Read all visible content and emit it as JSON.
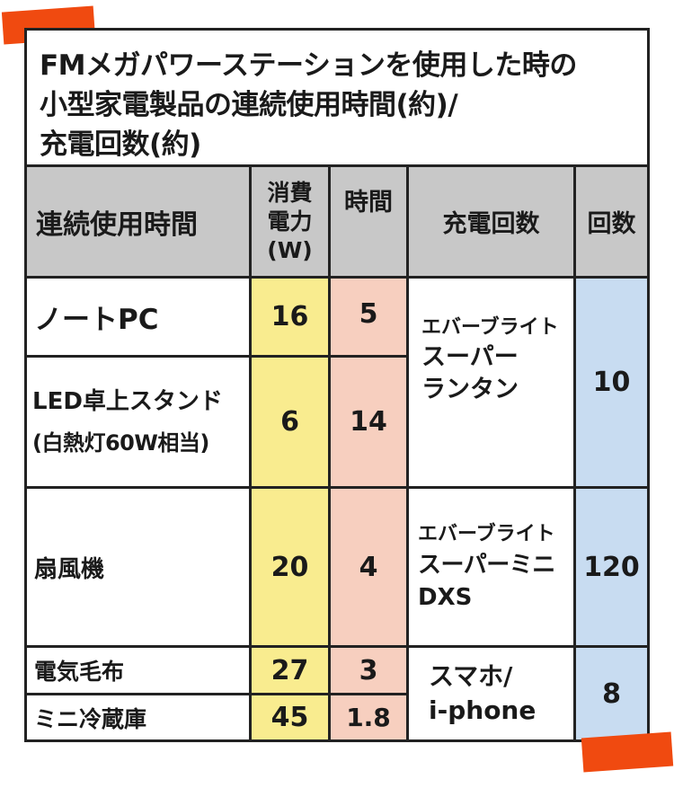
{
  "title": {
    "line1": "FMメガパワーステーションを使用した時の",
    "line2": "小型家電製品の連続使用時間(約)/",
    "line3": "充電回数(約)"
  },
  "headers": {
    "usage": "連続使用時間",
    "power_l1": "消費",
    "power_l2": "電力",
    "power_l3": "(W)",
    "hours": "時間",
    "charge": "充電回数",
    "count": "回数"
  },
  "rows": [
    {
      "device": "ノートPC",
      "power": "16",
      "hours": "5"
    },
    {
      "device_l1": "LED卓上スタンド",
      "device_l2": "(白熱灯60W相当)",
      "power": "6",
      "hours": "14"
    },
    {
      "device": "扇風機",
      "power": "20",
      "hours": "4"
    },
    {
      "device": "電気毛布",
      "power": "27",
      "hours": "3"
    },
    {
      "device": "ミニ冷蔵庫",
      "power": "45",
      "hours": "1.8"
    }
  ],
  "charge_groups": [
    {
      "l1": "エバーブライト",
      "l2": "スーパー",
      "l3": "ランタン",
      "count": "10"
    },
    {
      "l1": "エバーブライト",
      "l2": "スーパーミニ",
      "l3": "DXS",
      "count": "120"
    },
    {
      "l1": "スマホ/",
      "l2": "i-phone",
      "count": "8"
    }
  ],
  "colors": {
    "tape": "#f04a10",
    "header": "#c8c8c8",
    "power": "#f9ec8f",
    "hours": "#f7cfbf",
    "count": "#c8dcf1"
  }
}
